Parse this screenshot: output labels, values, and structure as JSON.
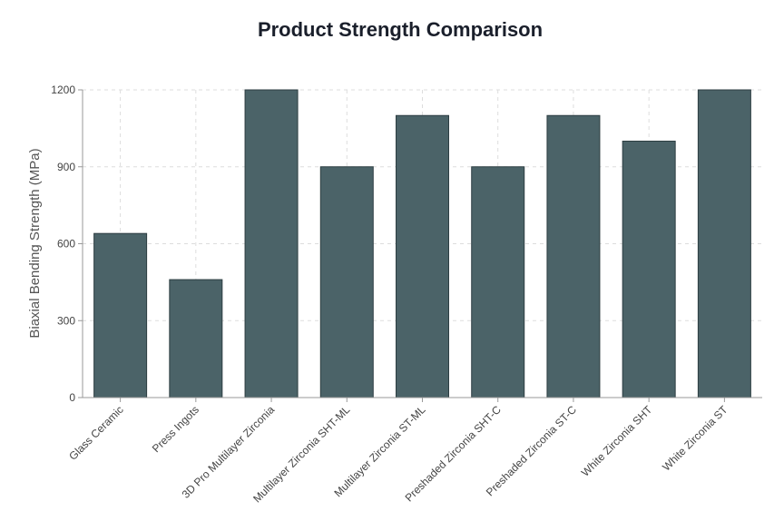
{
  "chart_data": {
    "type": "bar",
    "title": "Product Strength Comparison",
    "xlabel": "",
    "ylabel": "Biaxial Bending Strength (MPa)",
    "ylim": [
      0,
      1200
    ],
    "yticks": [
      0,
      300,
      600,
      900,
      1200
    ],
    "grid": true,
    "categories": [
      "Glass Ceramic",
      "Press Ingots",
      "3D Pro Multilayer Zirconia",
      "Multilayer Zirconia SHT-ML",
      "Multilayer Zirconia ST-ML",
      "Preshaded Zirconia SHT-C",
      "Preshaded Zirconia ST-C",
      "White Zirconia SHT",
      "White Zirconia ST"
    ],
    "values": [
      640,
      460,
      1200,
      900,
      1100,
      900,
      1100,
      1000,
      1200
    ],
    "bar_color": "#4b6368",
    "bar_edge": "#2d3e42"
  }
}
